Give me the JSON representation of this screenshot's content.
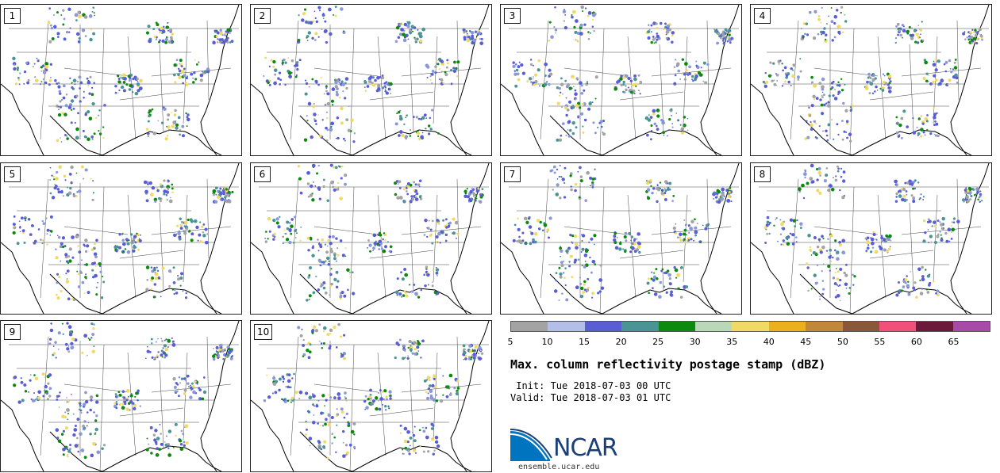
{
  "panels": [
    {
      "label": "1"
    },
    {
      "label": "2"
    },
    {
      "label": "3"
    },
    {
      "label": "4"
    },
    {
      "label": "5"
    },
    {
      "label": "6"
    },
    {
      "label": "7"
    },
    {
      "label": "8"
    },
    {
      "label": "9"
    },
    {
      "label": "10"
    }
  ],
  "colorbar": {
    "colors": [
      "#a3a3a3",
      "#b4bfe8",
      "#5a5ed4",
      "#4b9496",
      "#0b8a0e",
      "#b8d8b8",
      "#f0d964",
      "#ecb01e",
      "#c08838",
      "#8a5838",
      "#f0507a",
      "#6c1a3a",
      "#a84aa8"
    ],
    "ticks": [
      "5",
      "10",
      "15",
      "20",
      "25",
      "30",
      "35",
      "40",
      "45",
      "50",
      "55",
      "60",
      "65"
    ]
  },
  "title": "Max. column reflectivity postage stamp (dBZ)",
  "init": " Init: Tue 2018-07-03 00 UTC",
  "valid": "Valid: Tue 2018-07-03 01 UTC",
  "logo": {
    "text": "NCAR",
    "url_text": "ensemble.ucar.edu",
    "blue": "#0074bf",
    "navy": "#1a3f78"
  }
}
